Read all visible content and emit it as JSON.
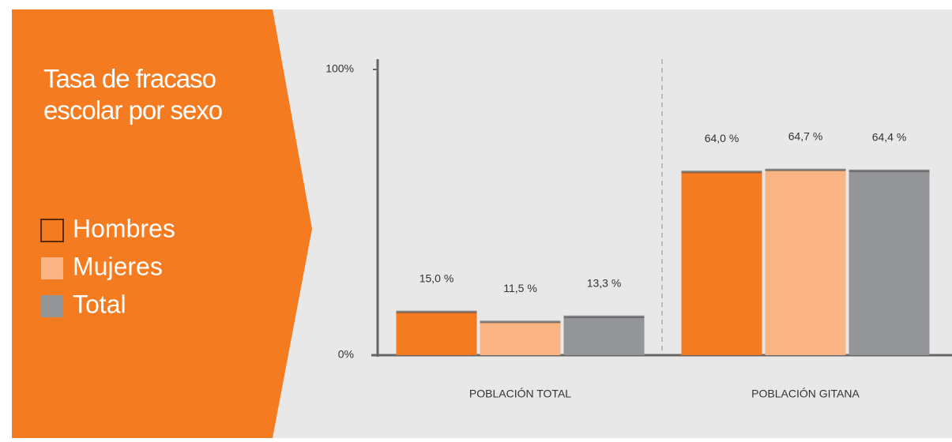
{
  "chart_data": {
    "type": "bar",
    "title": "Tasa de fracaso escolar por sexo",
    "categories": [
      "POBLACIÓN TOTAL",
      "POBLACIÓN GITANA"
    ],
    "series": [
      {
        "name": "Hombres",
        "color": "#f47b20",
        "values": [
          15.0,
          64.0
        ],
        "value_labels": [
          "15,0 %",
          "64,0 %"
        ]
      },
      {
        "name": "Mujeres",
        "color": "#fbb584",
        "values": [
          11.5,
          64.7
        ],
        "value_labels": [
          "11,5 %",
          "64,7 %"
        ]
      },
      {
        "name": "Total",
        "color": "#939598",
        "values": [
          13.3,
          64.4
        ],
        "value_labels": [
          "13,3 %",
          "64,4 %"
        ]
      }
    ],
    "ylim": [
      0,
      100
    ],
    "yticks": [
      {
        "value": 0,
        "label": "0%"
      },
      {
        "value": 100,
        "label": "100%"
      }
    ]
  }
}
